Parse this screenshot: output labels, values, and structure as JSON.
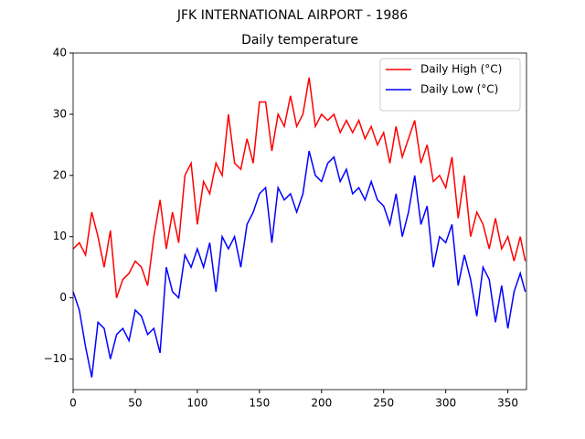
{
  "chart_data": {
    "type": "line",
    "suptitle": "JFK INTERNATIONAL AIRPORT - 1986",
    "title": "Daily temperature",
    "x": [
      0,
      5,
      10,
      15,
      20,
      25,
      30,
      35,
      40,
      45,
      50,
      55,
      60,
      65,
      70,
      75,
      80,
      85,
      90,
      95,
      100,
      105,
      110,
      115,
      120,
      125,
      130,
      135,
      140,
      145,
      150,
      155,
      160,
      165,
      170,
      175,
      180,
      185,
      190,
      195,
      200,
      205,
      210,
      215,
      220,
      225,
      230,
      235,
      240,
      245,
      250,
      255,
      260,
      265,
      270,
      275,
      280,
      285,
      290,
      295,
      300,
      305,
      310,
      315,
      320,
      325,
      330,
      335,
      340,
      345,
      350,
      355,
      360,
      364
    ],
    "series": [
      {
        "name": "Daily High (°C)",
        "color": "#ff0000",
        "values": [
          8,
          9,
          7,
          14,
          10,
          5,
          11,
          0,
          3,
          4,
          6,
          5,
          2,
          10,
          16,
          8,
          14,
          9,
          20,
          22,
          12,
          19,
          17,
          22,
          20,
          30,
          22,
          21,
          26,
          22,
          32,
          32,
          24,
          30,
          28,
          33,
          28,
          30,
          36,
          28,
          30,
          29,
          30,
          27,
          29,
          27,
          29,
          26,
          28,
          25,
          27,
          22,
          28,
          23,
          26,
          29,
          22,
          25,
          19,
          20,
          18,
          23,
          13,
          20,
          10,
          14,
          12,
          8,
          13,
          8,
          10,
          6,
          10,
          6
        ]
      },
      {
        "name": "Daily Low (°C)",
        "color": "#0000ff",
        "values": [
          1,
          -2,
          -8,
          -13,
          -4,
          -5,
          -10,
          -6,
          -5,
          -7,
          -2,
          -3,
          -6,
          -5,
          -9,
          5,
          1,
          0,
          7,
          5,
          8,
          5,
          9,
          1,
          10,
          8,
          10,
          5,
          12,
          14,
          17,
          18,
          9,
          18,
          16,
          17,
          14,
          17,
          24,
          20,
          19,
          22,
          23,
          19,
          21,
          17,
          18,
          16,
          19,
          16,
          15,
          12,
          17,
          10,
          14,
          20,
          12,
          15,
          5,
          10,
          9,
          12,
          2,
          7,
          3,
          -3,
          5,
          3,
          -4,
          2,
          -5,
          1,
          4,
          1
        ]
      }
    ],
    "xlim": [
      0,
      365
    ],
    "ylim": [
      -15,
      40
    ],
    "xticks": [
      0,
      50,
      100,
      150,
      200,
      250,
      300,
      350
    ],
    "yticks": [
      {
        "value": -10,
        "label": "−10"
      },
      0,
      10,
      20,
      30,
      40
    ],
    "legend": "upper right"
  }
}
